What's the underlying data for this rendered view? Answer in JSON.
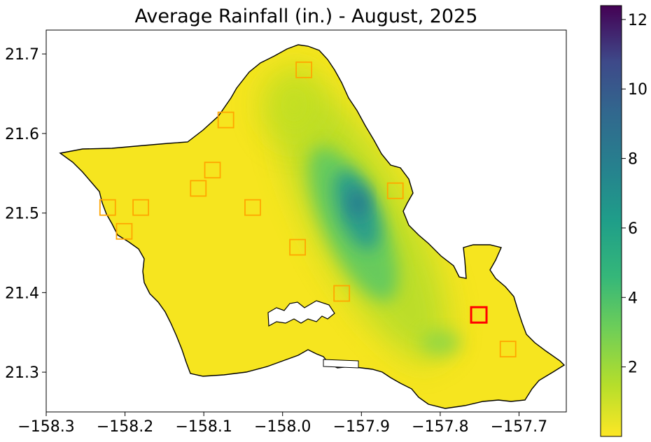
{
  "title": "Average Rainfall (in.) - August, 2025",
  "x_axis": {
    "ticks": [
      -158.3,
      -158.2,
      -158.1,
      -158.0,
      -157.9,
      -157.8,
      -157.7
    ],
    "tick_labels": [
      "−158.3",
      "−158.2",
      "−158.1",
      "−158.0",
      "−157.9",
      "−157.8",
      "−157.7"
    ],
    "range": [
      -158.3,
      -157.64
    ]
  },
  "y_axis": {
    "ticks": [
      21.3,
      21.4,
      21.5,
      21.6,
      21.7
    ],
    "tick_labels": [
      "21.3",
      "21.4",
      "21.5",
      "21.6",
      "21.7"
    ],
    "range": [
      21.25,
      21.73
    ]
  },
  "colorbar": {
    "colormap": "viridis (reversed)",
    "range": [
      0,
      12.4
    ],
    "ticks": [
      2,
      4,
      6,
      8,
      10,
      12
    ],
    "tick_labels": [
      "2",
      "4",
      "6",
      "8",
      "10",
      "12"
    ]
  },
  "colors": {
    "low": "#fde725",
    "mid": "#21918c",
    "high": "#440154",
    "station_marker": "#ffa500",
    "highlight_marker": "#ff0000",
    "coastline": "#000000"
  },
  "stations": [
    {
      "lon": -157.973,
      "lat": 21.68,
      "highlight": false
    },
    {
      "lon": -158.072,
      "lat": 21.617,
      "highlight": false
    },
    {
      "lon": -158.089,
      "lat": 21.554,
      "highlight": false
    },
    {
      "lon": -158.107,
      "lat": 21.531,
      "highlight": false
    },
    {
      "lon": -158.222,
      "lat": 21.507,
      "highlight": false
    },
    {
      "lon": -158.18,
      "lat": 21.507,
      "highlight": false
    },
    {
      "lon": -158.201,
      "lat": 21.477,
      "highlight": false
    },
    {
      "lon": -158.038,
      "lat": 21.507,
      "highlight": false
    },
    {
      "lon": -157.981,
      "lat": 21.457,
      "highlight": false
    },
    {
      "lon": -157.925,
      "lat": 21.399,
      "highlight": false
    },
    {
      "lon": -157.857,
      "lat": 21.528,
      "highlight": false
    },
    {
      "lon": -157.751,
      "lat": 21.372,
      "highlight": true
    },
    {
      "lon": -157.714,
      "lat": 21.329,
      "highlight": false
    }
  ],
  "rainfall_peaks": [
    {
      "lon": -157.905,
      "lat": 21.515,
      "value": 6.3
    },
    {
      "lon": -157.89,
      "lat": 21.45,
      "value": 4.5
    },
    {
      "lon": -157.96,
      "lat": 21.6,
      "value": 2.0
    },
    {
      "lon": -157.78,
      "lat": 21.335,
      "value": 2.8
    }
  ]
}
